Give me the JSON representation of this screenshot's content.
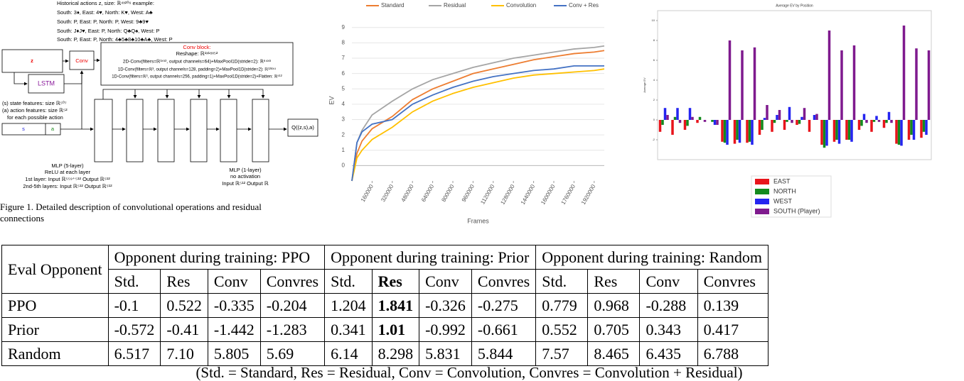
{
  "diagram": {
    "history": [
      "Historical actions z, size: ℝ⁴ˣ²⁰⁶ example:",
      "South: 3♦, East: 4♥, North: K♥, West: A♣",
      "South: P, East: P, North: P, West: 9♣9♥",
      "South: J♦J♥, East: P, North: Q♣Q♠, West: P",
      "South: P, East: P, North: 4♣5♣8♣10♣A♣, West: P"
    ],
    "z": "z",
    "conv": "Conv",
    "lstm": "LSTM",
    "s": "s",
    "a": "a",
    "q": "Q((z,s),a)",
    "conv_block": [
      "Conv block:",
      "Reshape: ℝ¹ˣ¹⁸ˣ⁵²",
      "2D-Conv(filters=ℝ¹ˣ⁵², output channels=64)+MaxPool1D(stride=2): ℝ⁶⁴ˣ⁸",
      "1D-Conv(filters=ℝ³, output channels=128, padding=2)+MaxPool1D(stride=2): ℝ¹²⁸ˣ⁴",
      "1D-Conv(filters=ℝ³, output channels=256, padding=1)+MaxPool1D(stride=2)+Flatten: ℝ⁵¹²"
    ],
    "features": [
      "(s) state features: size ℝ⁵⁰⁷",
      "(a) action features: size ℝ⁵²",
      "for each possible action"
    ],
    "mlp5": [
      "MLP (5-layer)",
      "ReLU at each layer",
      "1st layer: Input ℝ⁵⁵⁹⁺⁵¹² Output ℝ⁵¹²",
      "2nd-5th layers: Input ℝ⁵¹² Output ℝ⁵¹²"
    ],
    "mlp1": [
      "MLP (1-layer)",
      "no activation",
      "Input ℝ⁵¹² Output ℝ"
    ],
    "caption": "Figure 1.  Detailed description of convolutional operations and residual connections"
  },
  "chart_data": [
    {
      "type": "line",
      "x_label": "Frames",
      "y_label": "EV",
      "x": [
        0,
        40000,
        80000,
        160000,
        320000,
        480000,
        640000,
        800000,
        960000,
        1120000,
        1280000,
        1440000,
        1600000,
        1760000,
        1920000,
        2000000
      ],
      "series": [
        {
          "name": "Standard",
          "color": "#ed7d31",
          "values": [
            -1,
            0.8,
            1.6,
            2.4,
            3.2,
            4.3,
            5.0,
            5.5,
            6.0,
            6.3,
            6.6,
            6.9,
            7.1,
            7.3,
            7.4,
            7.5
          ]
        },
        {
          "name": "Residual",
          "color": "#a5a5a5",
          "values": [
            -1,
            1.5,
            2.3,
            3.3,
            4.2,
            5.0,
            5.6,
            6.0,
            6.4,
            6.7,
            7.0,
            7.2,
            7.4,
            7.6,
            7.7,
            7.8
          ]
        },
        {
          "name": "Convolution",
          "color": "#ffc000",
          "values": [
            -1,
            0.5,
            1.0,
            1.7,
            2.5,
            3.5,
            4.2,
            4.7,
            5.1,
            5.4,
            5.7,
            5.9,
            6.0,
            6.1,
            6.2,
            6.3
          ]
        },
        {
          "name": "Conv + Res",
          "color": "#4472c4",
          "values": [
            -1,
            1.5,
            2.2,
            2.7,
            3.0,
            4.0,
            4.6,
            5.1,
            5.5,
            5.8,
            6.0,
            6.2,
            6.3,
            6.5,
            6.5,
            6.5
          ]
        }
      ],
      "xlim": [
        0,
        2000000
      ],
      "xticks": [
        160000,
        320000,
        480000,
        640000,
        800000,
        960000,
        1120000,
        1280000,
        1440000,
        1600000,
        1760000,
        1920000
      ],
      "ylim": [
        -1,
        9.5
      ],
      "yticks": [
        0,
        1,
        2,
        3,
        4,
        5,
        6,
        7,
        8,
        9
      ],
      "grid": true
    },
    {
      "type": "bar",
      "title": "Average EV by Position",
      "y_label": "Average EV",
      "categories": [
        null,
        null,
        null,
        null,
        null,
        null,
        null,
        null,
        null,
        null,
        null,
        null,
        null,
        null,
        null,
        null,
        null,
        null,
        null,
        null,
        null,
        null
      ],
      "series": [
        {
          "name": "EAST",
          "color": "#e8141b",
          "values": [
            -1.2,
            -1.5,
            -1.0,
            -0.3,
            0,
            -2.2,
            -2.4,
            -2.3,
            -1.5,
            -1.2,
            -1.0,
            -0.5,
            -1.2,
            -2.5,
            -2.2,
            -2.0,
            -1.0,
            -1.2,
            -0.8,
            -2.4,
            -2.0,
            -1.8
          ]
        },
        {
          "name": "NORTH",
          "color": "#138a1d",
          "values": [
            -0.5,
            0.3,
            -0.6,
            0.3,
            -0.2,
            -2.3,
            -2.0,
            -2.2,
            -1.0,
            -0.3,
            -0.2,
            -0.4,
            0,
            -2.8,
            -2.0,
            -2.0,
            -0.6,
            -0.2,
            -0.3,
            -2.5,
            -1.5,
            -1.2
          ]
        },
        {
          "name": "WEST",
          "color": "#2424f0",
          "values": [
            1.2,
            1.2,
            1.2,
            0,
            -0.5,
            -2.5,
            -2.3,
            -2.5,
            0.2,
            0.5,
            1.3,
            0.3,
            0.5,
            -2.6,
            -2.4,
            -2.2,
            0.6,
            0.4,
            0.8,
            -2.6,
            -2.0,
            -1.5
          ]
        },
        {
          "name": "SOUTH (Player)",
          "color": "#7f1a8e",
          "values": [
            0.5,
            -0.3,
            0.3,
            -0.2,
            -0.5,
            8.0,
            7.0,
            7.3,
            1.5,
            1.0,
            -0.3,
            1.2,
            0.6,
            9.0,
            7.0,
            7.5,
            -0.3,
            -0.2,
            -0.3,
            9.5,
            7.2,
            7.0
          ]
        }
      ],
      "ylim": [
        -4,
        11
      ],
      "yticks": [
        -2,
        0,
        2,
        4,
        6,
        8,
        10
      ]
    }
  ],
  "table": {
    "corner": "Eval Opponent",
    "groups": [
      "Opponent during training: PPO",
      "Opponent during training: Prior",
      "Opponent during training: Random"
    ],
    "subheaders": [
      "Std.",
      "Res",
      "Conv",
      "Convres",
      "Std.",
      "Res",
      "Conv",
      "Convres",
      "Std.",
      "Res",
      "Conv",
      "Convres"
    ],
    "rows": [
      [
        "PPO",
        "-0.1",
        "0.522",
        "-0.335",
        "-0.204",
        "1.204",
        "1.841",
        "-0.326",
        "-0.275",
        "0.779",
        "0.968",
        "-0.288",
        "0.139"
      ],
      [
        "Prior",
        "-0.572",
        "-0.41",
        "-1.442",
        "-1.283",
        "0.341",
        "1.01",
        "-0.992",
        "-0.661",
        "0.552",
        "0.705",
        "0.343",
        "0.417"
      ],
      [
        "Random",
        "6.517",
        "7.10",
        "5.805",
        "5.69",
        "6.14",
        "8.298",
        "5.831",
        "5.844",
        "7.57",
        "8.465",
        "6.435",
        "6.788"
      ]
    ],
    "bold_subheaders": [
      5
    ],
    "bold_cells": [
      [
        0,
        6
      ],
      [
        1,
        6
      ]
    ],
    "caption": "(Std. = Standard, Res = Residual, Conv = Convolution, Convres = Convolution + Residual)"
  }
}
